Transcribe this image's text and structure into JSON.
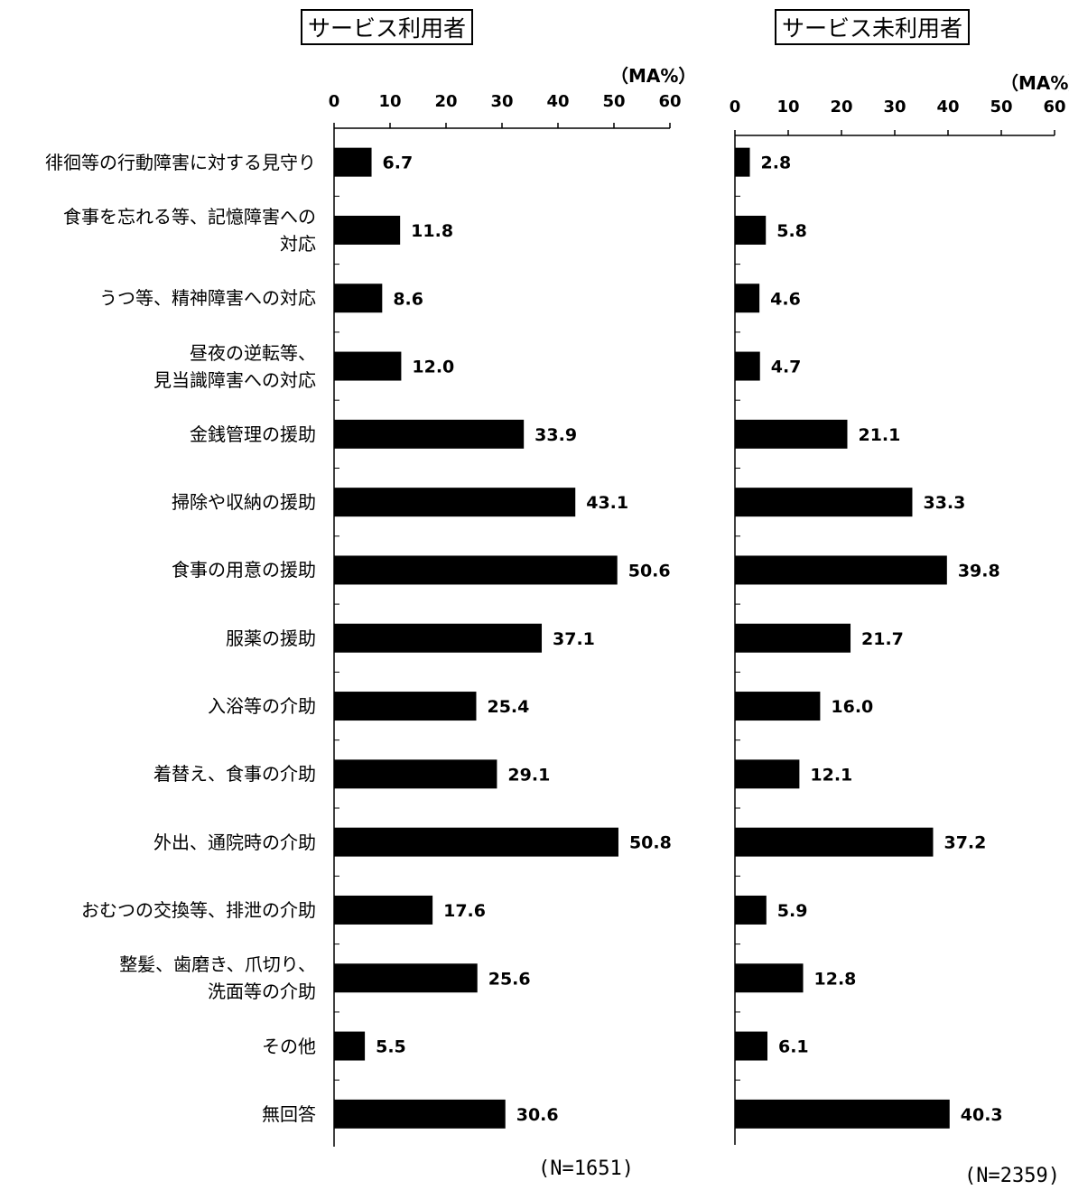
{
  "chart_data": [
    {
      "type": "bar",
      "orientation": "horizontal",
      "title": "サービス利用者",
      "unit": "（MA%）",
      "n_label": "(N=1651)",
      "xlim": [
        0,
        60
      ],
      "ticks": [
        "0",
        "10",
        "20",
        "30",
        "40",
        "50",
        "60"
      ],
      "categories": [
        [
          "徘徊等の行動障害に対する見守り"
        ],
        [
          "食事を忘れる等、記憶障害への",
          "対応"
        ],
        [
          "うつ等、精神障害への対応"
        ],
        [
          "昼夜の逆転等、",
          "見当識障害への対応"
        ],
        [
          "金銭管理の援助"
        ],
        [
          "掃除や収納の援助"
        ],
        [
          "食事の用意の援助"
        ],
        [
          "服薬の援助"
        ],
        [
          "入浴等の介助"
        ],
        [
          "着替え、食事の介助"
        ],
        [
          "外出、通院時の介助"
        ],
        [
          "おむつの交換等、排泄の介助"
        ],
        [
          "整髪、歯磨き、爪切り、",
          "洗面等の介助"
        ],
        [
          "その他"
        ],
        [
          "無回答"
        ]
      ],
      "values": [
        6.7,
        11.8,
        8.6,
        12.0,
        33.9,
        43.1,
        50.6,
        37.1,
        25.4,
        29.1,
        50.8,
        17.6,
        25.6,
        5.5,
        30.6
      ],
      "value_labels": [
        "6.7",
        "11.8",
        "8.6",
        "12.0",
        "33.9",
        "43.1",
        "50.6",
        "37.1",
        "25.4",
        "29.1",
        "50.8",
        "17.6",
        "25.6",
        "5.5",
        "30.6"
      ],
      "bar_color": "#000000"
    },
    {
      "type": "bar",
      "orientation": "horizontal",
      "title": "サービス未利用者",
      "unit": "（MA%）",
      "n_label": "(N=2359)",
      "xlim": [
        0,
        60
      ],
      "ticks": [
        "0",
        "10",
        "20",
        "30",
        "40",
        "50",
        "60"
      ],
      "values": [
        2.8,
        5.8,
        4.6,
        4.7,
        21.1,
        33.3,
        39.8,
        21.7,
        16.0,
        12.1,
        37.2,
        5.9,
        12.8,
        6.1,
        40.3
      ],
      "value_labels": [
        "2.8",
        "5.8",
        "4.6",
        "4.7",
        "21.1",
        "33.3",
        "39.8",
        "21.7",
        "16.0",
        "12.1",
        "37.2",
        "5.9",
        "12.8",
        "6.1",
        "40.3"
      ],
      "bar_color": "#000000"
    }
  ]
}
